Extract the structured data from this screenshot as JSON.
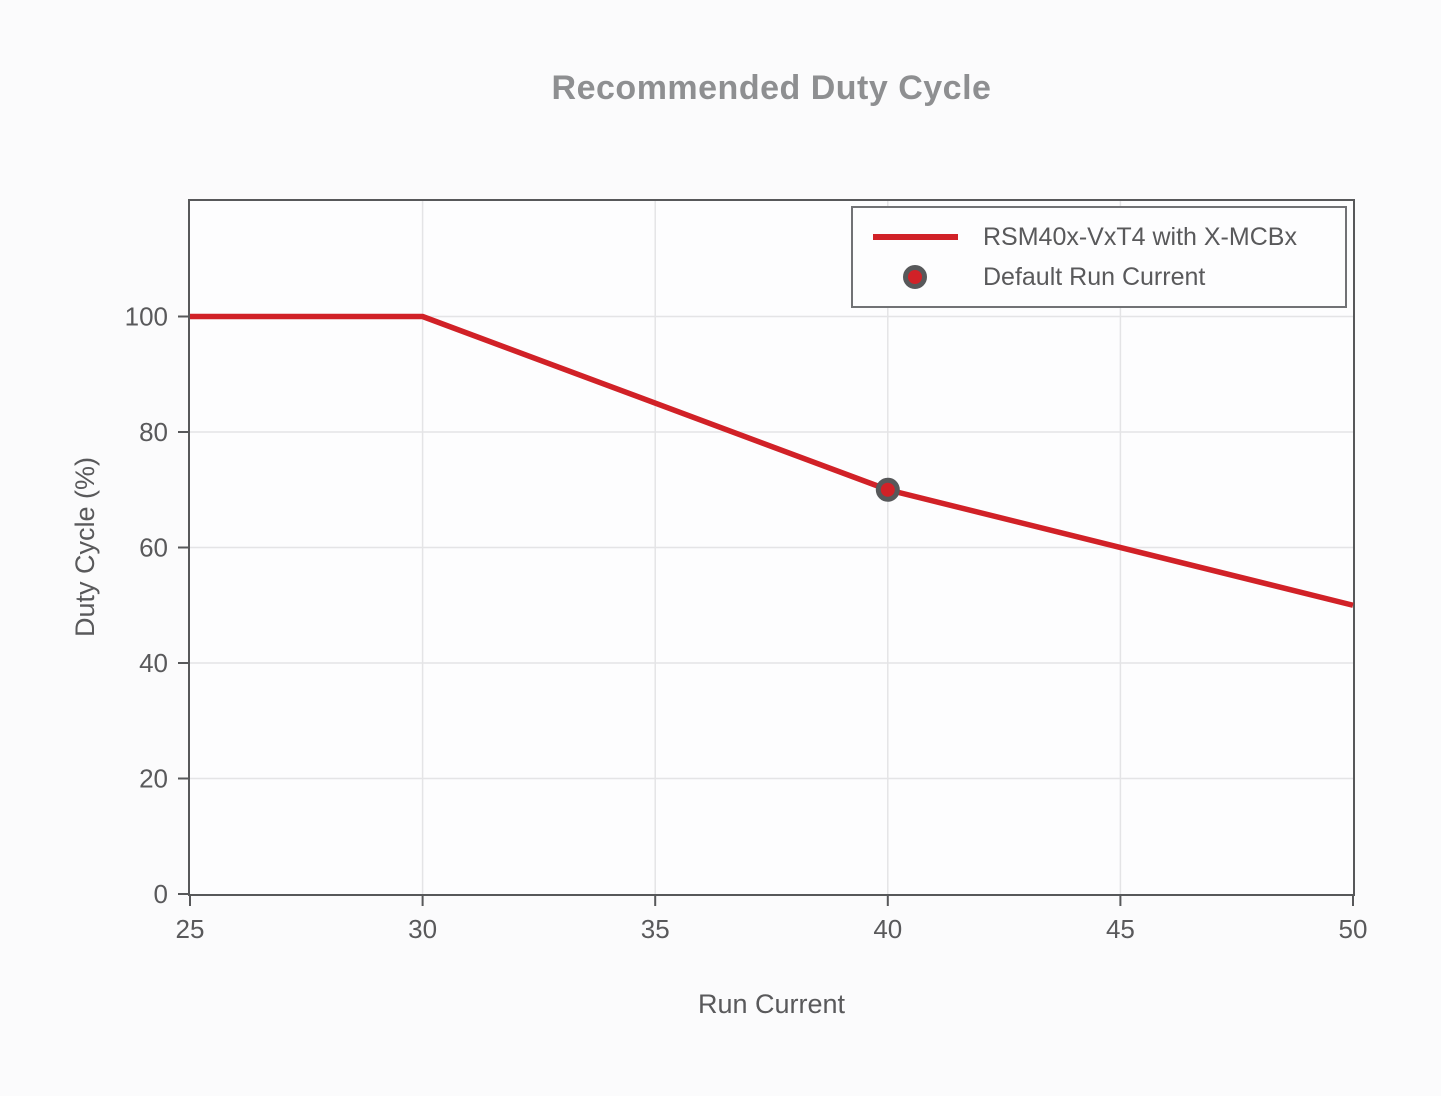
{
  "chart_data": {
    "type": "line",
    "title": "Recommended Duty Cycle",
    "xlabel": "Run Current",
    "ylabel": "Duty Cycle (%)",
    "xlim": [
      25,
      50
    ],
    "ylim": [
      0,
      120
    ],
    "x_ticks": [
      25,
      30,
      35,
      40,
      45,
      50
    ],
    "y_ticks": [
      0,
      20,
      40,
      60,
      80,
      100
    ],
    "grid": true,
    "legend_position": "upper right",
    "series": [
      {
        "name": "RSM40x-VxT4 with X-MCBx",
        "type": "line",
        "color": "#d12127",
        "x": [
          25,
          30,
          40,
          50
        ],
        "y": [
          100,
          100,
          70,
          50
        ]
      },
      {
        "name": "Default Run Current",
        "type": "scatter",
        "color": "#d12127",
        "edge_color": "#57585a",
        "x": [
          40
        ],
        "y": [
          70
        ]
      }
    ]
  },
  "colors": {
    "series_red": "#d12127",
    "axis_gray": "#57585a",
    "grid_gray": "#e4e4e6",
    "title_gray": "#8e8f91",
    "text_gray": "#59595b",
    "legend_border": "#717275",
    "plot_bg": "#fdfdfe",
    "figure_bg": "#fbfbfc"
  }
}
